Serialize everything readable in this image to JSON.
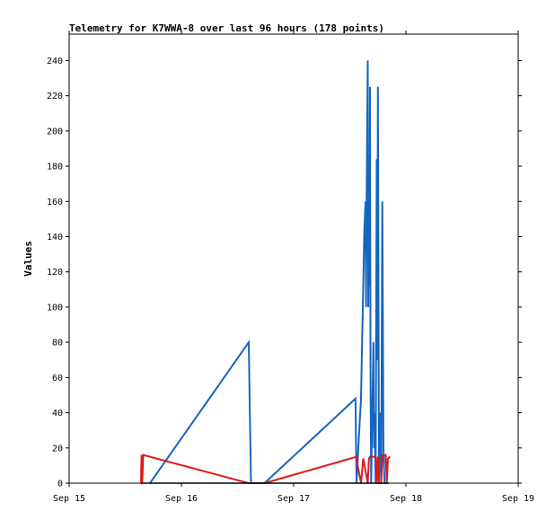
{
  "chart_data": {
    "type": "line",
    "title": "Telemetry for K7WWA-8 over last 96 hours (178 points)",
    "xlabel": "",
    "ylabel": "Values",
    "x_ticks": [
      {
        "day": 15,
        "label": "Sep 15"
      },
      {
        "day": 16,
        "label": "Sep 16"
      },
      {
        "day": 17,
        "label": "Sep 17"
      },
      {
        "day": 18,
        "label": "Sep 18"
      },
      {
        "day": 19,
        "label": "Sep 19"
      }
    ],
    "y_ticks": [
      0,
      20,
      40,
      60,
      80,
      100,
      120,
      140,
      160,
      180,
      200,
      220,
      240
    ],
    "xlim_days": [
      15,
      19
    ],
    "ylim": [
      0,
      255
    ],
    "legend": "none",
    "grid": false,
    "colors": {
      "blue": "#1565c0",
      "red": "#e01818",
      "black": "#000000"
    },
    "series": [
      {
        "color": "blue",
        "points": [
          [
            15.72,
            0
          ],
          [
            16.6,
            80
          ],
          [
            16.61,
            40
          ],
          [
            16.62,
            0
          ],
          [
            16.74,
            0
          ],
          [
            17.55,
            48
          ],
          [
            17.56,
            0
          ],
          [
            17.58,
            25
          ],
          [
            17.6,
            48
          ],
          [
            17.61,
            80
          ],
          [
            17.62,
            112
          ],
          [
            17.63,
            144
          ],
          [
            17.64,
            160
          ],
          [
            17.645,
            100
          ],
          [
            17.65,
            160
          ],
          [
            17.66,
            240
          ],
          [
            17.665,
            100
          ],
          [
            17.67,
            168
          ],
          [
            17.675,
            112
          ],
          [
            17.68,
            225
          ],
          [
            17.685,
            60
          ],
          [
            17.69,
            0
          ],
          [
            17.7,
            40
          ],
          [
            17.71,
            80
          ],
          [
            17.715,
            20
          ],
          [
            17.72,
            40
          ],
          [
            17.73,
            0
          ],
          [
            17.74,
            184
          ],
          [
            17.745,
            70
          ],
          [
            17.75,
            225
          ],
          [
            17.76,
            0
          ],
          [
            17.77,
            40
          ],
          [
            17.78,
            0
          ],
          [
            17.79,
            160
          ],
          [
            17.8,
            20
          ],
          [
            17.81,
            0
          ],
          [
            17.82,
            0
          ]
        ]
      },
      {
        "color": "red",
        "points": [
          [
            15.64,
            0
          ],
          [
            15.645,
            16
          ],
          [
            15.65,
            0
          ],
          [
            15.66,
            16
          ],
          [
            16.6,
            0
          ],
          [
            16.74,
            0
          ],
          [
            17.56,
            15
          ],
          [
            17.57,
            10
          ],
          [
            17.6,
            0
          ],
          [
            17.62,
            14
          ],
          [
            17.66,
            0
          ],
          [
            17.67,
            14
          ],
          [
            17.68,
            15
          ],
          [
            17.72,
            15
          ],
          [
            17.73,
            15
          ],
          [
            17.74,
            0
          ],
          [
            17.75,
            15
          ],
          [
            17.76,
            0
          ],
          [
            17.78,
            0
          ],
          [
            17.79,
            16
          ],
          [
            17.82,
            16
          ],
          [
            17.83,
            0
          ],
          [
            17.84,
            14
          ],
          [
            17.86,
            15
          ]
        ]
      },
      {
        "color": "black",
        "points": [
          [
            15.64,
            0
          ],
          [
            17.85,
            0
          ]
        ]
      }
    ]
  }
}
